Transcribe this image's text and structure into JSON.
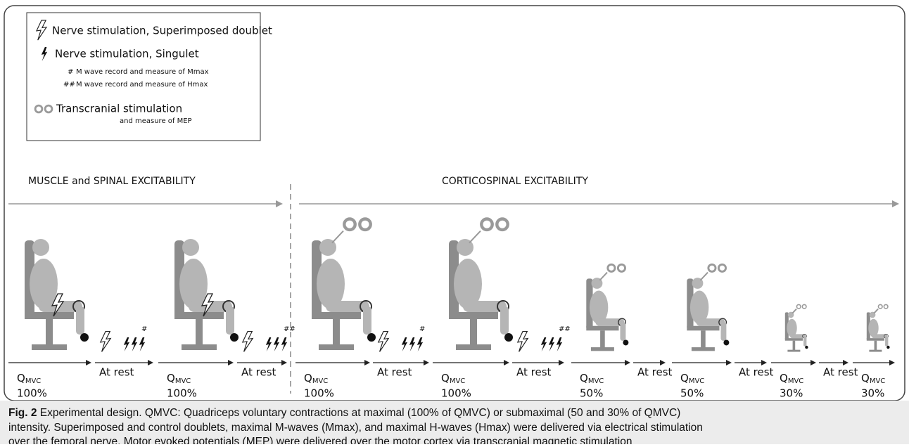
{
  "legend": {
    "doublet": "Nerve stimulation, Superimposed doublet",
    "singulet": "Nerve stimulation, Singulet",
    "mmax_mark": "#",
    "mmax": "M wave record and measure of Mmax",
    "hmax_mark": "##",
    "hmax": "M wave record and measure of Hmax",
    "tms": "Transcranial stimulation",
    "tms_sub": "and measure of MEP"
  },
  "sections": {
    "left": "MUSCLE and SPINAL EXCITABILITY",
    "right": "CORTICOSPINAL EXCITABILITY"
  },
  "steps": [
    {
      "q": "Q",
      "sub": "MVC",
      "pct": "100%"
    },
    {
      "label": "At rest",
      "mark": "#"
    },
    {
      "q": "Q",
      "sub": "MVC",
      "pct": "100%"
    },
    {
      "label": "At rest",
      "mark": "##"
    },
    {
      "q": "Q",
      "sub": "MVC",
      "pct": "100%"
    },
    {
      "label": "At rest",
      "mark": "#"
    },
    {
      "q": "Q",
      "sub": "MVC",
      "pct": "100%"
    },
    {
      "label": "At rest",
      "mark": "##"
    },
    {
      "q": "Q",
      "sub": "MVC",
      "pct": "50%"
    },
    {
      "label": "At rest"
    },
    {
      "q": "Q",
      "sub": "MVC",
      "pct": "50%"
    },
    {
      "label": "At rest"
    },
    {
      "q": "Q",
      "sub": "MVC",
      "pct": "30%"
    },
    {
      "label": "At rest"
    },
    {
      "q": "Q",
      "sub": "MVC",
      "pct": "30%"
    }
  ],
  "caption": {
    "label": "Fig. 2",
    "lines": [
      "Experimental design. QMVC: Quadriceps voluntary contractions at maximal (100% of QMVC) or submaximal (50 and 30% of QMVC)",
      "intensity. Superimposed and control doublets, maximal M-waves (Mmax), and maximal H-waves (Hmax) were delivered via electrical stimulation",
      "over the femoral nerve. Motor evoked potentials (MEP) were delivered over the motor cortex via transcranial magnetic stimulation"
    ]
  }
}
